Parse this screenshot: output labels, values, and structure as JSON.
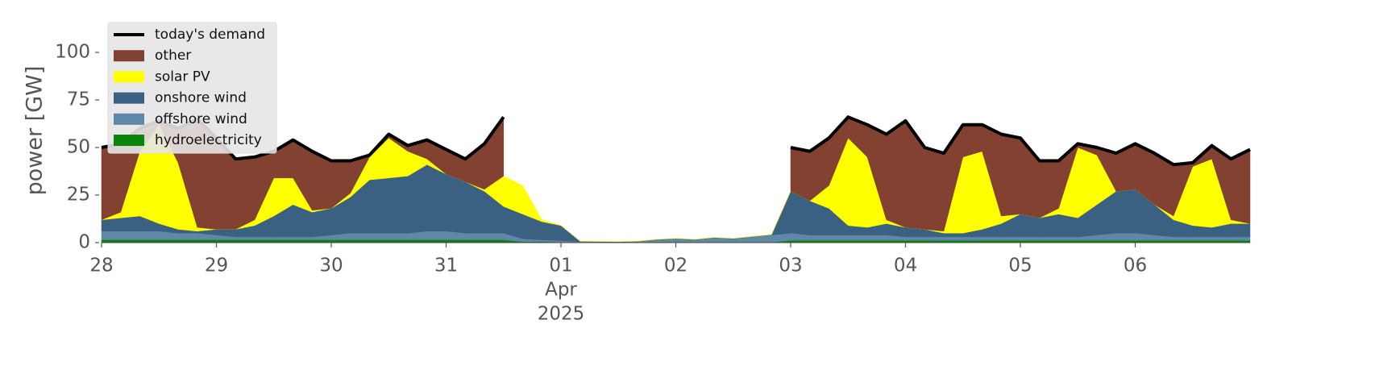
{
  "chart_data": {
    "type": "stacked_area",
    "ylabel": "power [GW]",
    "x": [
      0,
      4,
      8,
      12,
      16,
      20,
      24,
      28,
      32,
      36,
      40,
      44,
      48,
      52,
      56,
      60,
      64,
      68,
      72,
      76,
      80,
      84,
      88,
      92,
      96,
      100,
      104,
      108,
      112,
      116,
      120,
      124,
      128,
      132,
      136,
      140,
      144,
      148,
      152,
      156,
      160,
      164,
      168,
      172,
      176,
      180,
      184,
      188,
      192,
      196,
      200,
      204,
      208,
      212,
      216,
      220,
      224,
      228,
      232,
      236,
      240
    ],
    "xlim": [
      0,
      240
    ],
    "xticks": [
      {
        "value": 0,
        "label": "28"
      },
      {
        "value": 24,
        "label": "29"
      },
      {
        "value": 48,
        "label": "30"
      },
      {
        "value": 72,
        "label": "31"
      },
      {
        "value": 96,
        "label": "01"
      },
      {
        "value": 120,
        "label": "02"
      },
      {
        "value": 144,
        "label": "03"
      },
      {
        "value": 168,
        "label": "04"
      },
      {
        "value": 192,
        "label": "05"
      },
      {
        "value": 216,
        "label": "06"
      }
    ],
    "x_date_labels": [
      "Apr",
      "2025"
    ],
    "ylim": [
      0,
      118
    ],
    "yticks": [
      0,
      25,
      50,
      75,
      100
    ],
    "legend": "upper left",
    "series": [
      {
        "name": "hydroelectricity",
        "color": "#0a850a",
        "values": [
          1.5,
          1.5,
          1.5,
          1.5,
          1.5,
          1.5,
          1.5,
          1.5,
          1.5,
          1.5,
          1.5,
          1.5,
          1.5,
          1.5,
          1.5,
          1.5,
          1.5,
          1.5,
          1.5,
          1.5,
          1.5,
          1.5,
          0.5,
          0.5,
          0.3,
          0.2,
          0.2,
          0.2,
          0.2,
          0.2,
          0.2,
          0.2,
          0.2,
          0.2,
          0.2,
          0.2,
          1.2,
          1.2,
          1.2,
          1.2,
          1.2,
          1.2,
          1.2,
          1.2,
          1.2,
          1.2,
          1.2,
          1.2,
          1.2,
          1.2,
          1.2,
          1.2,
          1.2,
          1.2,
          1.2,
          1.2,
          1.2,
          1.2,
          1.2,
          1.2,
          1.2
        ]
      },
      {
        "name": "offshore wind",
        "color": "#5f87a8",
        "values": [
          4.5,
          4.5,
          4.5,
          4.5,
          3.5,
          3.5,
          2.5,
          1.5,
          1.5,
          1.5,
          1.5,
          1.5,
          2.5,
          3.5,
          3.5,
          3.5,
          3.5,
          4.5,
          4.5,
          3.5,
          3.5,
          3.5,
          1.5,
          1.0,
          0.7,
          0.3,
          0.2,
          0.1,
          0.3,
          1.3,
          1.8,
          1.3,
          2.3,
          1.8,
          2.8,
          3.8,
          3.8,
          2.8,
          2.8,
          2.8,
          2.8,
          2.8,
          1.8,
          1.8,
          1.8,
          1.8,
          1.8,
          1.8,
          1.8,
          1.8,
          1.8,
          1.8,
          2.8,
          3.8,
          3.8,
          2.8,
          1.8,
          1.8,
          1.8,
          1.8,
          1.8
        ]
      },
      {
        "name": "onshore wind",
        "color": "#3b6182",
        "values": [
          6,
          7,
          8,
          4,
          2,
          1,
          3,
          4,
          6,
          11,
          17,
          13,
          14,
          19,
          28,
          29,
          30,
          35,
          30,
          27,
          22,
          14,
          13,
          9.5,
          8,
          0.2,
          0.2,
          0.2,
          0.2,
          0.2,
          0.2,
          0.2,
          0.2,
          0.2,
          0.2,
          0.2,
          22,
          18,
          14,
          5,
          4,
          6,
          5,
          4,
          2,
          2,
          4,
          7,
          12,
          10,
          12,
          10,
          16,
          22,
          23,
          16,
          9,
          6,
          5,
          7,
          7
        ]
      },
      {
        "name": "solar PV",
        "color": "#ffff00",
        "values": [
          0,
          3,
          34,
          52,
          35,
          2,
          0,
          0,
          3,
          20,
          14,
          1,
          0,
          2,
          12,
          21,
          13,
          3,
          0,
          0,
          1,
          16,
          15,
          1,
          0,
          0,
          0,
          0,
          0,
          0,
          0,
          0,
          0,
          0,
          0,
          0,
          0,
          0,
          12,
          46,
          37,
          2,
          0,
          0,
          1,
          40,
          41,
          4,
          0,
          0,
          3,
          37,
          26,
          0,
          0,
          0,
          2,
          31,
          36,
          2,
          0
        ]
      },
      {
        "name": "other",
        "color": "#824131",
        "values": [
          38,
          36,
          12,
          2,
          18,
          57,
          48,
          37,
          33,
          14,
          20,
          31,
          25,
          17,
          1,
          2,
          3,
          10,
          13,
          12,
          24,
          31,
          null,
          null,
          null,
          null,
          null,
          null,
          null,
          null,
          null,
          null,
          null,
          null,
          null,
          null,
          23,
          26,
          25,
          11,
          17,
          45,
          56,
          43,
          41,
          17,
          14,
          43,
          40,
          30,
          25,
          2,
          4,
          20,
          24,
          27,
          27,
          2,
          7,
          32,
          39
        ]
      }
    ],
    "demand": {
      "name": "today's demand",
      "color": "#000000",
      "values": [
        50,
        52,
        60,
        64,
        60,
        65,
        55,
        44,
        45,
        48,
        54,
        48,
        43,
        43,
        46,
        57,
        51,
        54,
        49,
        44,
        52,
        66,
        null,
        null,
        null,
        null,
        null,
        null,
        null,
        null,
        null,
        null,
        null,
        null,
        null,
        null,
        50,
        48,
        55,
        66,
        62,
        57,
        64,
        50,
        47,
        62,
        62,
        57,
        55,
        43,
        43,
        52,
        50,
        47,
        52,
        47,
        41,
        42,
        51,
        44,
        49
      ]
    }
  }
}
